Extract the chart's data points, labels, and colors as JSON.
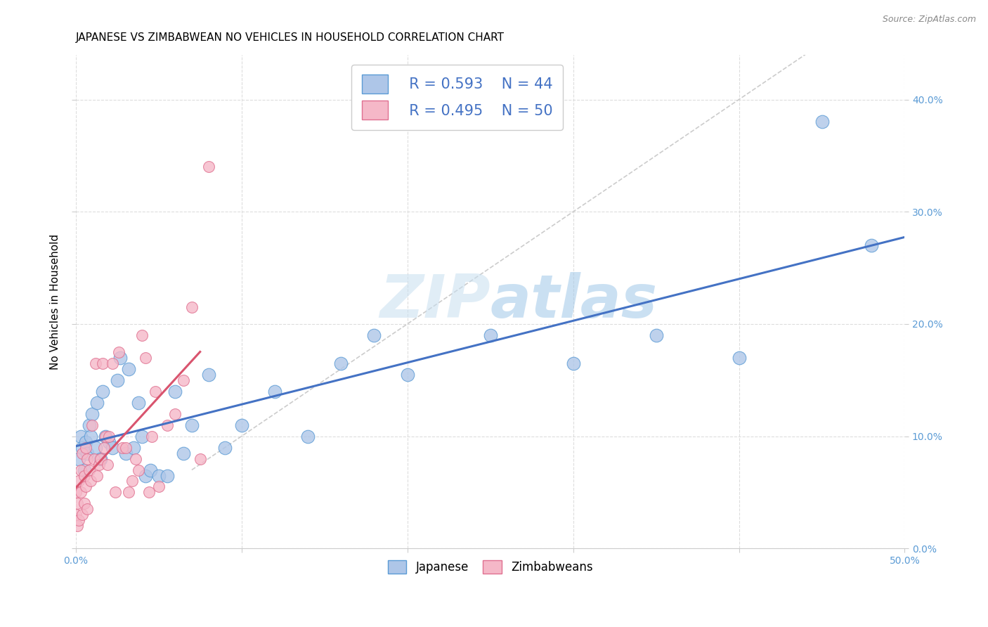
{
  "title": "JAPANESE VS ZIMBABWEAN NO VEHICLES IN HOUSEHOLD CORRELATION CHART",
  "source": "Source: ZipAtlas.com",
  "ylabel": "No Vehicles in Household",
  "xlim": [
    0.0,
    0.5
  ],
  "ylim": [
    0.0,
    0.44
  ],
  "xticks": [
    0.0,
    0.1,
    0.2,
    0.3,
    0.4,
    0.5
  ],
  "yticks": [
    0.0,
    0.1,
    0.2,
    0.3,
    0.4
  ],
  "ytick_labels_right": [
    "0.0%",
    "10.0%",
    "20.0%",
    "30.0%",
    "40.0%"
  ],
  "watermark_zip": "ZIP",
  "watermark_atlas": "atlas",
  "legend_r_japanese": "R = 0.593",
  "legend_n_japanese": "N = 44",
  "legend_r_zimbabwean": "R = 0.495",
  "legend_n_zimbabwean": "N = 50",
  "legend_label_japanese": "Japanese",
  "legend_label_zimbabwean": "Zimbabweans",
  "japanese_color": "#aec6e8",
  "zimbabwean_color": "#f5b8c8",
  "japanese_edge_color": "#5b9bd5",
  "zimbabwean_edge_color": "#e07090",
  "japanese_line_color": "#4472c4",
  "zimbabwean_line_color": "#d9546e",
  "diagonal_line_color": "#cccccc",
  "background_color": "#ffffff",
  "grid_color": "#dddddd",
  "title_fontsize": 11,
  "axis_label_fontsize": 11,
  "tick_fontsize": 10,
  "japanese_x": [
    0.002,
    0.003,
    0.004,
    0.005,
    0.006,
    0.007,
    0.008,
    0.009,
    0.01,
    0.012,
    0.013,
    0.015,
    0.016,
    0.018,
    0.02,
    0.022,
    0.025,
    0.027,
    0.03,
    0.032,
    0.035,
    0.038,
    0.04,
    0.042,
    0.045,
    0.05,
    0.055,
    0.06,
    0.065,
    0.07,
    0.08,
    0.09,
    0.1,
    0.12,
    0.14,
    0.16,
    0.18,
    0.2,
    0.25,
    0.3,
    0.35,
    0.4,
    0.45,
    0.48
  ],
  "japanese_y": [
    0.08,
    0.1,
    0.09,
    0.07,
    0.095,
    0.085,
    0.11,
    0.1,
    0.12,
    0.09,
    0.13,
    0.08,
    0.14,
    0.1,
    0.095,
    0.09,
    0.15,
    0.17,
    0.085,
    0.16,
    0.09,
    0.13,
    0.1,
    0.065,
    0.07,
    0.065,
    0.065,
    0.14,
    0.085,
    0.11,
    0.155,
    0.09,
    0.11,
    0.14,
    0.1,
    0.165,
    0.19,
    0.155,
    0.19,
    0.165,
    0.19,
    0.17,
    0.38,
    0.27
  ],
  "zimbabwean_x": [
    0.0,
    0.0,
    0.001,
    0.001,
    0.002,
    0.002,
    0.003,
    0.003,
    0.004,
    0.004,
    0.005,
    0.005,
    0.006,
    0.006,
    0.007,
    0.007,
    0.008,
    0.009,
    0.01,
    0.011,
    0.012,
    0.013,
    0.014,
    0.015,
    0.016,
    0.017,
    0.018,
    0.019,
    0.02,
    0.022,
    0.024,
    0.026,
    0.028,
    0.03,
    0.032,
    0.034,
    0.036,
    0.038,
    0.04,
    0.042,
    0.044,
    0.046,
    0.048,
    0.05,
    0.055,
    0.06,
    0.065,
    0.07,
    0.075,
    0.08
  ],
  "zimbabwean_y": [
    0.05,
    0.03,
    0.04,
    0.02,
    0.06,
    0.025,
    0.07,
    0.05,
    0.085,
    0.03,
    0.065,
    0.04,
    0.09,
    0.055,
    0.08,
    0.035,
    0.07,
    0.06,
    0.11,
    0.08,
    0.165,
    0.065,
    0.075,
    0.08,
    0.165,
    0.09,
    0.1,
    0.075,
    0.1,
    0.165,
    0.05,
    0.175,
    0.09,
    0.09,
    0.05,
    0.06,
    0.08,
    0.07,
    0.19,
    0.17,
    0.05,
    0.1,
    0.14,
    0.055,
    0.11,
    0.12,
    0.15,
    0.215,
    0.08,
    0.34
  ]
}
